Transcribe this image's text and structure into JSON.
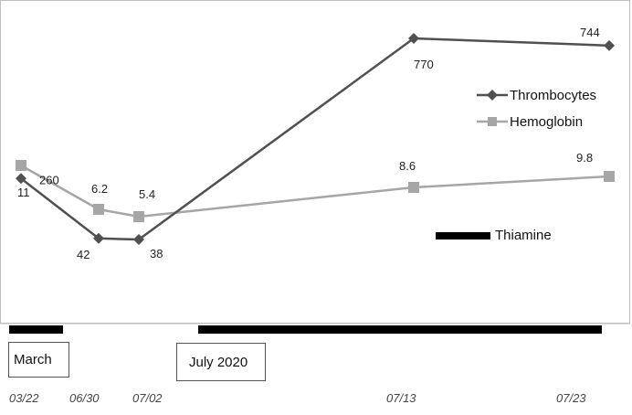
{
  "chart_data": {
    "type": "line",
    "categories": [
      "03/22",
      "06/30",
      "07/02",
      "07/13",
      "07/23"
    ],
    "series": [
      {
        "name": "Thrombocytes",
        "values": [
          260,
          42,
          38,
          770,
          744
        ],
        "color": "#505050",
        "marker": "diamond"
      },
      {
        "name": "Hemoglobin",
        "values": [
          11,
          6.2,
          5.4,
          8.6,
          9.8
        ],
        "color": "#a6a6a6",
        "marker": "square"
      }
    ],
    "data_labels": {
      "Thrombocytes": [
        "260",
        "42",
        "38",
        "770",
        "744"
      ],
      "Hemoglobin": [
        "11",
        "6.2",
        "5.4",
        "8.6",
        "9.8"
      ]
    },
    "legend": {
      "items": [
        "Thrombocytes",
        "Hemoglobin"
      ],
      "bar_item": "Thiamine",
      "placement": "right"
    },
    "period_labels": [
      "March",
      "July 2020"
    ],
    "title": "",
    "xlabel": "",
    "ylabel": ""
  }
}
